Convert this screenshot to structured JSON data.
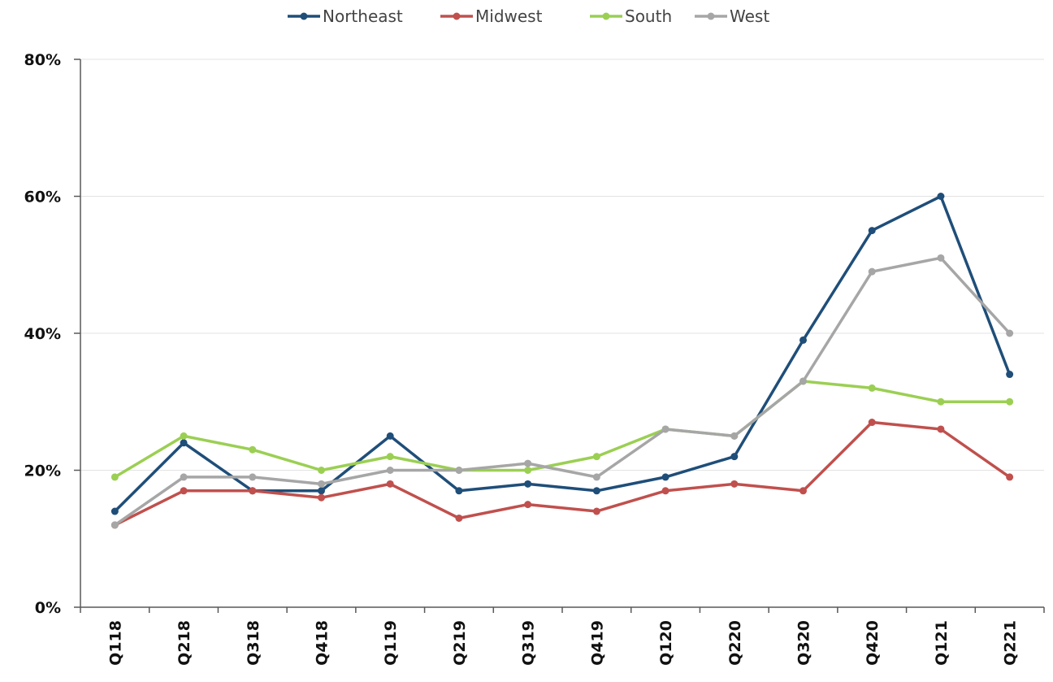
{
  "chart_data": {
    "type": "line",
    "categories": [
      "Q118",
      "Q218",
      "Q318",
      "Q418",
      "Q119",
      "Q219",
      "Q319",
      "Q419",
      "Q120",
      "Q220",
      "Q320",
      "Q420",
      "Q121",
      "Q221"
    ],
    "series": [
      {
        "name": "Northeast",
        "color": "#1f4e79",
        "values": [
          14,
          24,
          17,
          17,
          25,
          17,
          18,
          17,
          19,
          22,
          39,
          55,
          60,
          34
        ]
      },
      {
        "name": "Midwest",
        "color": "#c0504d",
        "values": [
          12,
          17,
          17,
          16,
          18,
          13,
          15,
          14,
          17,
          18,
          17,
          27,
          26,
          19
        ]
      },
      {
        "name": "South",
        "color": "#9bcf53",
        "values": [
          19,
          25,
          23,
          20,
          22,
          20,
          20,
          22,
          26,
          25,
          33,
          32,
          30,
          30
        ]
      },
      {
        "name": "West",
        "color": "#a6a6a6",
        "values": [
          12,
          19,
          19,
          18,
          20,
          20,
          21,
          19,
          26,
          25,
          33,
          49,
          51,
          40
        ]
      }
    ],
    "ylim": [
      0,
      80
    ],
    "yticks": [
      0,
      20,
      40,
      60,
      80
    ],
    "ytick_labels": [
      "0%",
      "20%",
      "40%",
      "60%",
      "80%"
    ],
    "xlabel": "",
    "ylabel": "",
    "title": "",
    "grid": true,
    "legend_position": "top-center"
  }
}
